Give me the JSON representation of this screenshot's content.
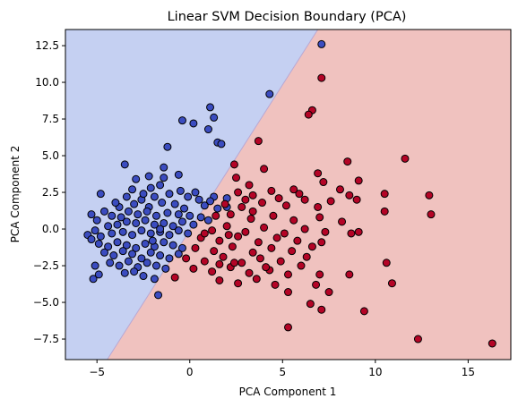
{
  "chart_data": {
    "type": "scatter",
    "title": "Linear SVM Decision Boundary (PCA)",
    "xlabel": "PCA Component 1",
    "ylabel": "PCA Component 2",
    "xlim": [
      -6.7,
      17.3
    ],
    "ylim": [
      -8.9,
      13.6
    ],
    "x_ticks": [
      -5,
      0,
      5,
      10,
      15
    ],
    "y_ticks": [
      -7.5,
      -5.0,
      -2.5,
      0.0,
      2.5,
      5.0,
      7.5,
      10.0,
      12.5
    ],
    "x_tick_labels": [
      "−5",
      "0",
      "5",
      "10",
      "15"
    ],
    "y_tick_labels": [
      "−7.5",
      "−5.0",
      "−2.5",
      "0.0",
      "2.5",
      "5.0",
      "7.5",
      "10.0",
      "12.5"
    ],
    "grid": false,
    "decision_boundary": {
      "points": [
        [
          -4.45,
          -8.9
        ],
        [
          6.9,
          13.6
        ]
      ],
      "region_colors": {
        "class_0": "#c5d0f2",
        "class_1": "#f0c2bf"
      }
    },
    "series": [
      {
        "color": "#3b4cc0",
        "points": [
          [
            7.1,
            12.6
          ],
          [
            4.3,
            9.2
          ],
          [
            1.1,
            8.3
          ],
          [
            1.3,
            7.6
          ],
          [
            -0.4,
            7.4
          ],
          [
            0.2,
            7.2
          ],
          [
            1.0,
            6.8
          ],
          [
            1.5,
            5.9
          ],
          [
            1.7,
            5.8
          ],
          [
            -1.2,
            5.6
          ],
          [
            -3.5,
            4.4
          ],
          [
            -1.4,
            4.2
          ],
          [
            -2.2,
            3.6
          ],
          [
            -1.4,
            3.5
          ],
          [
            -0.6,
            3.7
          ],
          [
            -2.9,
            3.4
          ],
          [
            -1.6,
            3.0
          ],
          [
            -2.1,
            2.8
          ],
          [
            -3.1,
            2.7
          ],
          [
            -4.8,
            2.4
          ],
          [
            -1.1,
            2.4
          ],
          [
            -0.5,
            2.6
          ],
          [
            0.3,
            2.5
          ],
          [
            -0.1,
            2.2
          ],
          [
            1.3,
            2.2
          ],
          [
            2.0,
            2.1
          ],
          [
            1.1,
            1.9
          ],
          [
            0.8,
            1.6
          ],
          [
            1.5,
            1.4
          ],
          [
            2.0,
            1.5
          ],
          [
            -3.4,
            2.2
          ],
          [
            -2.6,
            2.0
          ],
          [
            -3.0,
            1.7
          ],
          [
            -2.2,
            1.5
          ],
          [
            -1.5,
            1.8
          ],
          [
            -0.8,
            1.7
          ],
          [
            -5.3,
            1.0
          ],
          [
            -4.6,
            1.2
          ],
          [
            -5.0,
            0.6
          ],
          [
            -4.2,
            0.9
          ],
          [
            -3.8,
            1.5
          ],
          [
            -3.3,
            1.2
          ],
          [
            -2.8,
            1.0
          ],
          [
            -2.3,
            1.2
          ],
          [
            -1.8,
            0.9
          ],
          [
            -1.2,
            1.1
          ],
          [
            -0.6,
            1.0
          ],
          [
            0.0,
            0.9
          ],
          [
            0.6,
            0.8
          ],
          [
            1.0,
            0.6
          ],
          [
            -5.5,
            -0.4
          ],
          [
            -5.1,
            -0.1
          ],
          [
            -4.4,
            0.2
          ],
          [
            -3.9,
            0.3
          ],
          [
            -3.4,
            0.5
          ],
          [
            -2.9,
            0.4
          ],
          [
            -2.4,
            0.6
          ],
          [
            -1.9,
            0.3
          ],
          [
            -1.4,
            0.4
          ],
          [
            -0.9,
            0.2
          ],
          [
            -0.4,
            0.5
          ],
          [
            0.2,
            0.3
          ],
          [
            -5.3,
            -0.7
          ],
          [
            -4.8,
            -0.5
          ],
          [
            -4.2,
            -0.3
          ],
          [
            -3.6,
            -0.2
          ],
          [
            -3.1,
            -0.4
          ],
          [
            -2.6,
            -0.1
          ],
          [
            -2.1,
            -0.3
          ],
          [
            -1.6,
            -0.2
          ],
          [
            -1.1,
            -0.4
          ],
          [
            -0.6,
            -0.1
          ],
          [
            -0.1,
            -0.3
          ],
          [
            -4.9,
            -1.0
          ],
          [
            -4.4,
            -1.2
          ],
          [
            -3.9,
            -0.9
          ],
          [
            -3.4,
            -1.1
          ],
          [
            -2.9,
            -1.3
          ],
          [
            -2.4,
            -1.0
          ],
          [
            -1.9,
            -1.2
          ],
          [
            -1.4,
            -0.9
          ],
          [
            -0.9,
            -1.1
          ],
          [
            -0.4,
            -1.3
          ],
          [
            -4.6,
            -1.6
          ],
          [
            -4.1,
            -1.8
          ],
          [
            -3.6,
            -1.5
          ],
          [
            -3.1,
            -1.7
          ],
          [
            -2.6,
            -2.0
          ],
          [
            -2.1,
            -1.6
          ],
          [
            -1.6,
            -1.8
          ],
          [
            -1.1,
            -2.0
          ],
          [
            -0.6,
            -1.7
          ],
          [
            -4.3,
            -2.3
          ],
          [
            -3.8,
            -2.5
          ],
          [
            -3.3,
            -2.2
          ],
          [
            -2.8,
            -2.6
          ],
          [
            -2.3,
            -2.3
          ],
          [
            -1.8,
            -2.5
          ],
          [
            -1.3,
            -2.7
          ],
          [
            -5.1,
            -2.5
          ],
          [
            -4.9,
            -3.1
          ],
          [
            -5.2,
            -3.4
          ],
          [
            -3.5,
            -3.0
          ],
          [
            -2.5,
            -3.2
          ],
          [
            -1.9,
            -3.4
          ],
          [
            -1.7,
            -4.5
          ],
          [
            -3.0,
            -2.9
          ],
          [
            -1.6,
            0.0
          ],
          [
            -2.0,
            -0.8
          ],
          [
            -3.7,
            0.8
          ],
          [
            -2.5,
            2.4
          ],
          [
            -0.3,
            1.4
          ],
          [
            0.5,
            2.0
          ],
          [
            -1.9,
            2.2
          ],
          [
            -4.0,
            1.8
          ]
        ]
      },
      {
        "color": "#b40426",
        "points": [
          [
            7.1,
            10.3
          ],
          [
            6.6,
            8.1
          ],
          [
            6.4,
            7.8
          ],
          [
            3.7,
            6.0
          ],
          [
            8.5,
            4.6
          ],
          [
            11.6,
            4.8
          ],
          [
            4.0,
            4.1
          ],
          [
            6.9,
            3.8
          ],
          [
            2.4,
            4.4
          ],
          [
            7.2,
            3.2
          ],
          [
            9.1,
            3.3
          ],
          [
            2.5,
            3.5
          ],
          [
            3.2,
            3.0
          ],
          [
            4.4,
            2.6
          ],
          [
            5.6,
            2.7
          ],
          [
            8.1,
            2.7
          ],
          [
            8.6,
            2.3
          ],
          [
            10.5,
            2.4
          ],
          [
            2.6,
            2.5
          ],
          [
            3.4,
            2.3
          ],
          [
            4.8,
            2.1
          ],
          [
            6.2,
            2.0
          ],
          [
            7.6,
            1.9
          ],
          [
            9.0,
            2.0
          ],
          [
            12.9,
            2.3
          ],
          [
            1.9,
            1.7
          ],
          [
            2.8,
            1.5
          ],
          [
            3.9,
            1.8
          ],
          [
            5.2,
            1.6
          ],
          [
            6.9,
            1.5
          ],
          [
            10.5,
            1.2
          ],
          [
            1.4,
            0.9
          ],
          [
            2.2,
            1.0
          ],
          [
            3.3,
            0.7
          ],
          [
            4.5,
            0.9
          ],
          [
            5.6,
            0.6
          ],
          [
            7.0,
            0.8
          ],
          [
            8.2,
            0.5
          ],
          [
            13.0,
            1.0
          ],
          [
            1.2,
            -0.1
          ],
          [
            2.0,
            0.2
          ],
          [
            3.0,
            -0.2
          ],
          [
            4.0,
            0.1
          ],
          [
            5.1,
            -0.3
          ],
          [
            6.2,
            0.0
          ],
          [
            7.3,
            -0.2
          ],
          [
            8.7,
            -0.3
          ],
          [
            9.1,
            -0.2
          ],
          [
            0.6,
            -0.6
          ],
          [
            1.6,
            -0.8
          ],
          [
            2.6,
            -0.5
          ],
          [
            3.7,
            -0.9
          ],
          [
            4.7,
            -0.6
          ],
          [
            5.8,
            -0.8
          ],
          [
            7.1,
            -0.9
          ],
          [
            0.3,
            -1.3
          ],
          [
            1.3,
            -1.5
          ],
          [
            2.3,
            -1.2
          ],
          [
            3.4,
            -1.6
          ],
          [
            4.4,
            -1.3
          ],
          [
            5.5,
            -1.5
          ],
          [
            6.6,
            -1.2
          ],
          [
            -0.2,
            -2.0
          ],
          [
            0.8,
            -2.2
          ],
          [
            1.8,
            -1.9
          ],
          [
            2.8,
            -2.3
          ],
          [
            3.8,
            -2.0
          ],
          [
            4.9,
            -2.2
          ],
          [
            6.0,
            -2.5
          ],
          [
            10.6,
            -2.3
          ],
          [
            0.2,
            -2.7
          ],
          [
            1.2,
            -2.9
          ],
          [
            2.2,
            -2.6
          ],
          [
            3.2,
            -3.0
          ],
          [
            4.3,
            -2.8
          ],
          [
            5.3,
            -3.1
          ],
          [
            7.0,
            -3.1
          ],
          [
            8.6,
            -3.1
          ],
          [
            -0.8,
            -3.3
          ],
          [
            1.6,
            -3.5
          ],
          [
            2.6,
            -3.7
          ],
          [
            3.6,
            -3.4
          ],
          [
            4.6,
            -3.8
          ],
          [
            6.8,
            -3.8
          ],
          [
            10.9,
            -3.7
          ],
          [
            5.3,
            -4.3
          ],
          [
            7.5,
            -4.3
          ],
          [
            6.5,
            -5.1
          ],
          [
            7.1,
            -5.5
          ],
          [
            9.4,
            -5.6
          ],
          [
            5.3,
            -6.7
          ],
          [
            12.3,
            -7.5
          ],
          [
            16.3,
            -7.8
          ],
          [
            2.4,
            -2.3
          ],
          [
            1.6,
            -2.4
          ],
          [
            3.4,
            1.2
          ],
          [
            5.9,
            2.4
          ],
          [
            2.1,
            -0.4
          ],
          [
            4.1,
            -2.6
          ],
          [
            0.8,
            -0.3
          ],
          [
            3.0,
            2.0
          ],
          [
            6.3,
            -1.9
          ]
        ]
      }
    ]
  }
}
